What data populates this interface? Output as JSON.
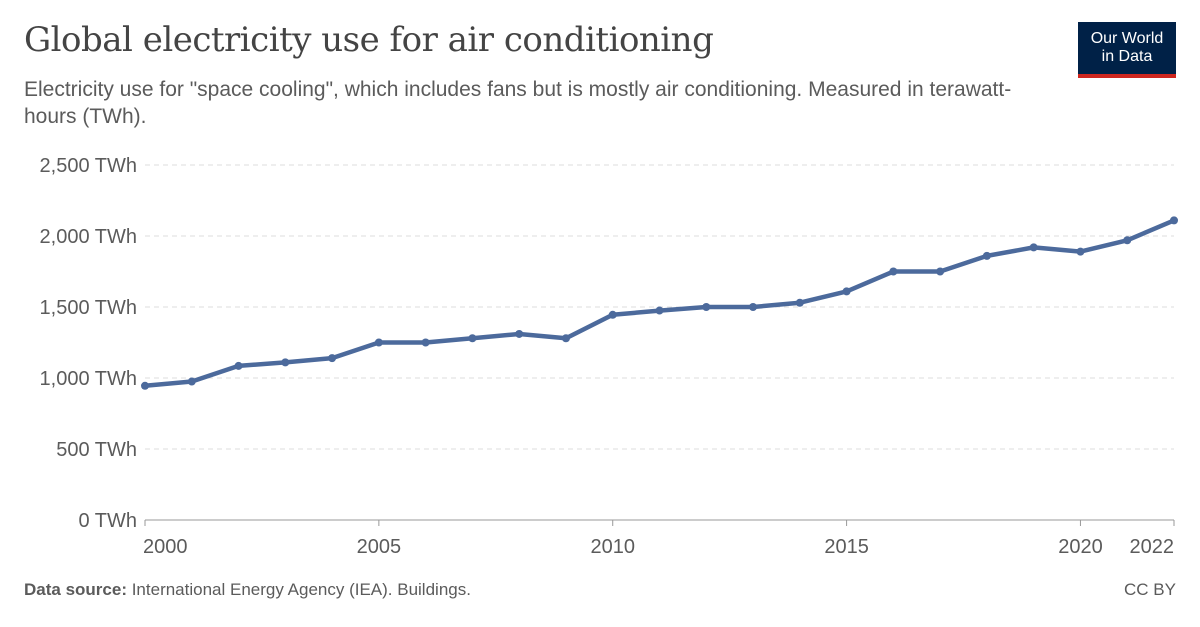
{
  "header": {
    "title": "Global electricity use for air conditioning",
    "subtitle": "Electricity use for \"space cooling\", which includes fans but is mostly air conditioning. Measured in terawatt-hours (TWh).",
    "logo_line1": "Our World",
    "logo_line2": "in Data"
  },
  "footer": {
    "source_label": "Data source:",
    "source_text": " International Energy Agency (IEA). Buildings.",
    "license": "CC BY"
  },
  "colors": {
    "line": "#4c6a9c",
    "grid": "#dddddd",
    "axis": "#999999",
    "tick_text": "#5b5b5b"
  },
  "chart_data": {
    "type": "line",
    "xlim": [
      2000,
      2022
    ],
    "ylim": [
      0,
      2500
    ],
    "grid": "horizontal dashed",
    "y_ticks": [
      0,
      500,
      1000,
      1500,
      2000,
      2500
    ],
    "y_tick_labels": [
      "0 TWh",
      "500 TWh",
      "1,000 TWh",
      "1,500 TWh",
      "2,000 TWh",
      "2,500 TWh"
    ],
    "x_ticks": [
      2000,
      2005,
      2010,
      2015,
      2020,
      2022
    ],
    "x_tick_labels": [
      "2000",
      "2005",
      "2010",
      "2015",
      "2020",
      "2022"
    ],
    "series": [
      {
        "x": [
          2000,
          2001,
          2002,
          2003,
          2004,
          2005,
          2006,
          2007,
          2008,
          2009,
          2010,
          2011,
          2012,
          2013,
          2014,
          2015,
          2016,
          2017,
          2018,
          2019,
          2020,
          2021,
          2022
        ],
        "values": [
          945,
          975,
          1085,
          1110,
          1140,
          1250,
          1250,
          1280,
          1310,
          1280,
          1445,
          1475,
          1500,
          1500,
          1530,
          1610,
          1750,
          1750,
          1860,
          1920,
          1890,
          1970,
          2110
        ]
      }
    ]
  }
}
